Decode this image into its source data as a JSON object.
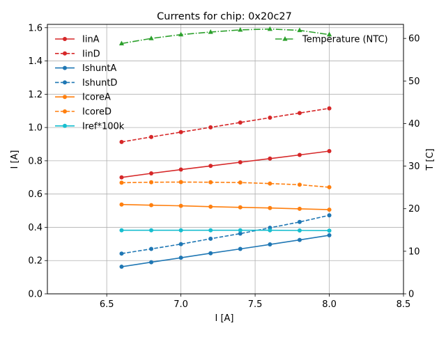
{
  "chart_data": {
    "type": "line",
    "title": "Currents for chip: 0x20c27",
    "xlabel": "I [A]",
    "ylabel": "I [A]",
    "y2label": "T [C]",
    "xlim": [
      6.1,
      8.5
    ],
    "ylim": [
      0.0,
      1.62
    ],
    "y2lim": [
      0,
      63.3
    ],
    "grid": true,
    "xticks": [
      6.5,
      7.0,
      7.5,
      8.0,
      8.5
    ],
    "xtick_labels": [
      "6.5",
      "7.0",
      "7.5",
      "8.0",
      "8.5"
    ],
    "yticks": [
      0.0,
      0.2,
      0.4,
      0.6,
      0.8,
      1.0,
      1.2,
      1.4,
      1.6
    ],
    "ytick_labels": [
      "0.0",
      "0.2",
      "0.4",
      "0.6",
      "0.8",
      "1.0",
      "1.2",
      "1.4",
      "1.6"
    ],
    "y2ticks": [
      0,
      10,
      20,
      30,
      40,
      50,
      60
    ],
    "y2tick_labels": [
      "0",
      "10",
      "20",
      "30",
      "40",
      "50",
      "60"
    ],
    "legend_position": "upper-left",
    "legend2_position": "upper-right",
    "x": [
      6.6,
      6.8,
      7.0,
      7.2,
      7.4,
      7.6,
      7.8,
      8.0
    ],
    "series": [
      {
        "name": "IinA",
        "axis": "left",
        "color": "#d62728",
        "dash": "solid",
        "marker": "circle",
        "values": [
          0.7,
          0.724,
          0.747,
          0.769,
          0.791,
          0.813,
          0.835,
          0.858
        ]
      },
      {
        "name": "IinD",
        "axis": "left",
        "color": "#d62728",
        "dash": "dashed",
        "marker": "circle",
        "values": [
          0.913,
          0.943,
          0.972,
          1.001,
          1.03,
          1.059,
          1.087,
          1.115
        ]
      },
      {
        "name": "IshuntA",
        "axis": "left",
        "color": "#1f77b4",
        "dash": "solid",
        "marker": "circle",
        "values": [
          0.163,
          0.19,
          0.217,
          0.244,
          0.27,
          0.297,
          0.324,
          0.352
        ]
      },
      {
        "name": "IshuntD",
        "axis": "left",
        "color": "#1f77b4",
        "dash": "dashed",
        "marker": "circle",
        "values": [
          0.242,
          0.27,
          0.299,
          0.331,
          0.362,
          0.397,
          0.432,
          0.472
        ]
      },
      {
        "name": "IcoreA",
        "axis": "left",
        "color": "#ff7f0e",
        "dash": "solid",
        "marker": "circle",
        "values": [
          0.537,
          0.533,
          0.529,
          0.524,
          0.52,
          0.516,
          0.511,
          0.506
        ]
      },
      {
        "name": "IcoreD",
        "axis": "left",
        "color": "#ff7f0e",
        "dash": "dashed",
        "marker": "circle",
        "values": [
          0.668,
          0.671,
          0.672,
          0.671,
          0.669,
          0.663,
          0.656,
          0.641
        ]
      },
      {
        "name": "Iref*100k",
        "axis": "left",
        "color": "#17becf",
        "dash": "solid",
        "marker": "circle",
        "values": [
          0.382,
          0.382,
          0.382,
          0.382,
          0.382,
          0.382,
          0.381,
          0.38
        ]
      },
      {
        "name": "Temperature (NTC)",
        "axis": "right",
        "color": "#2ca02c",
        "dash": "dashdot",
        "marker": "triangle",
        "values": [
          58.8,
          60.0,
          60.9,
          61.5,
          62.0,
          62.2,
          61.9,
          60.9
        ]
      }
    ]
  }
}
